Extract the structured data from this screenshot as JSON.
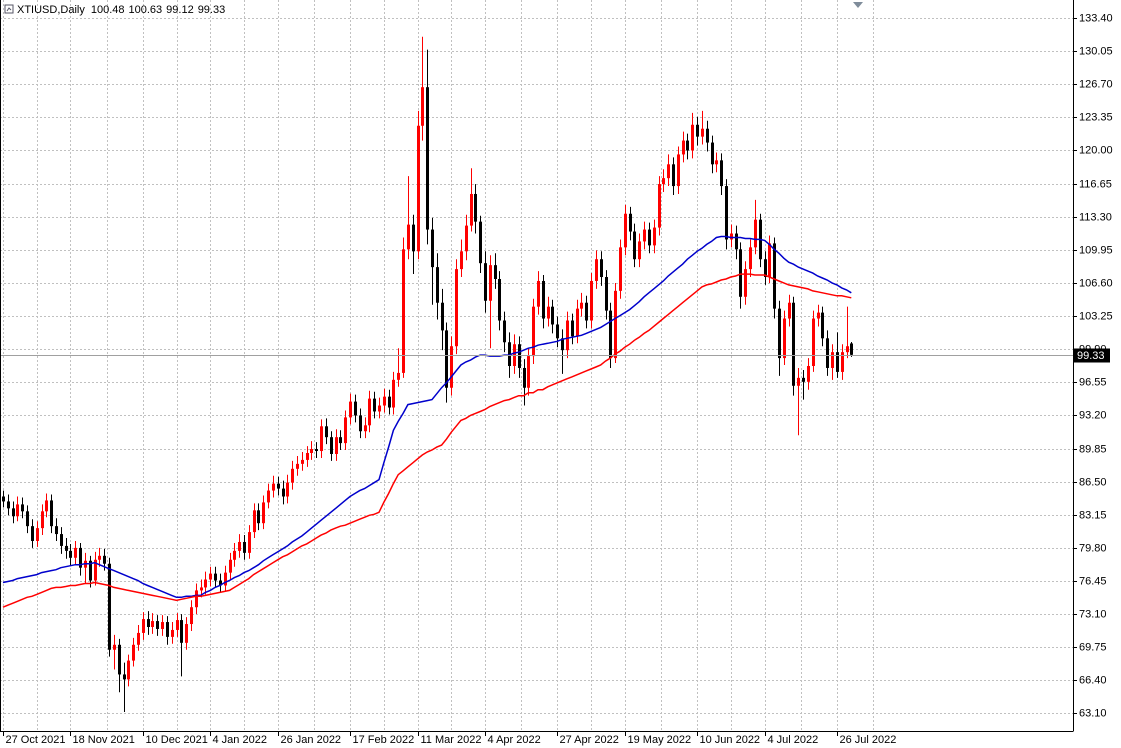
{
  "chart_data": {
    "type": "candlestick",
    "title": "XTIUSD,Daily",
    "categories": [
      "27 Oct 2021",
      null,
      null,
      null,
      null,
      null,
      null,
      null,
      null,
      null,
      null,
      null,
      null,
      null,
      "18 Nov 2021",
      null,
      null,
      null,
      null,
      null,
      null,
      null,
      null,
      null,
      null,
      null,
      null,
      null,
      null,
      "10 Dec 2021",
      null,
      null,
      null,
      null,
      null,
      null,
      null,
      null,
      null,
      null,
      null,
      null,
      null,
      "4 Jan 2022",
      null,
      null,
      null,
      null,
      null,
      null,
      null,
      null,
      null,
      null,
      null,
      null,
      null,
      "26 Jan 2022",
      null,
      null,
      null,
      null,
      null,
      null,
      null,
      null,
      null,
      null,
      null,
      null,
      null,
      null,
      "17 Feb 2022",
      null,
      null,
      null,
      null,
      null,
      null,
      null,
      null,
      null,
      null,
      null,
      null,
      null,
      "11 Mar 2022",
      null,
      null,
      null,
      null,
      null,
      null,
      null,
      null,
      null,
      null,
      null,
      null,
      null,
      "4 Apr 2022",
      null,
      null,
      null,
      null,
      null,
      null,
      null,
      null,
      null,
      null,
      null,
      null,
      null,
      null,
      "27 Apr 2022",
      null,
      null,
      null,
      null,
      null,
      null,
      null,
      null,
      null,
      null,
      null,
      null,
      null,
      "19 May 2022",
      null,
      null,
      null,
      null,
      null,
      null,
      null,
      null,
      null,
      null,
      null,
      null,
      null,
      null,
      "10 Jun 2022",
      null,
      null,
      null,
      null,
      null,
      null,
      null,
      null,
      null,
      null,
      null,
      null,
      null,
      "4 Jul 2022",
      null,
      null,
      null,
      null,
      null,
      null,
      null,
      null,
      null,
      null,
      null,
      null,
      null,
      null,
      "26 Jul 2022",
      null,
      null,
      null
    ],
    "open": [
      85.0,
      84.5,
      83.8,
      83.0,
      84.2,
      83.5,
      82.0,
      80.5,
      81.8,
      83.5,
      84.6,
      82.0,
      81.2,
      80.0,
      79.5,
      78.8,
      79.8,
      77.8,
      78.5,
      76.5,
      78.6,
      79.0,
      78.2,
      69.5,
      70.0,
      67.0,
      66.5,
      68.4,
      70.0,
      71.2,
      72.6,
      71.8,
      72.4,
      71.6,
      72.3,
      70.8,
      71.5,
      72.5,
      70.2,
      72.1,
      73.8,
      75.5,
      75.8,
      76.6,
      77.2,
      76.5,
      76.0,
      77.3,
      78.6,
      79.5,
      80.4,
      79.3,
      81.4,
      83.6,
      82.3,
      84.4,
      85.6,
      86.3,
      85.8,
      85.0,
      86.4,
      87.8,
      88.3,
      88.7,
      89.4,
      89.8,
      89.6,
      92.1,
      91.0,
      89.3,
      91.0,
      90.4,
      93.0,
      94.6,
      93.2,
      91.6,
      92.2,
      94.9,
      93.6,
      94.2,
      95.1,
      94.0,
      96.8,
      97.5,
      110.0,
      112.5,
      109.8,
      122.5,
      126.4,
      112.0,
      108.2,
      104.6,
      101.8,
      96.0,
      100.2,
      108.0,
      109.8,
      112.4,
      115.6,
      112.8,
      108.6,
      104.8,
      108.4,
      107.0,
      102.8,
      100.6,
      98.2,
      100.4,
      98.0,
      96.0,
      99.2,
      104.2,
      106.8,
      103.0,
      104.2,
      102.4,
      101.0,
      99.8,
      102.8,
      101.2,
      104.0,
      104.6,
      102.8,
      106.8,
      109.0,
      107.2,
      103.8,
      99.0,
      105.8,
      110.2,
      113.6,
      111.8,
      109.0,
      110.8,
      112.0,
      110.4,
      112.2,
      116.6,
      117.2,
      118.6,
      116.4,
      119.6,
      121.0,
      120.0,
      122.6,
      121.4,
      122.2,
      120.8,
      118.6,
      119.0,
      116.4,
      111.0,
      111.6,
      110.0,
      105.2,
      108.0,
      110.2,
      113.0,
      109.0,
      107.2,
      110.6,
      104.0,
      99.0,
      103.0,
      104.6,
      96.2,
      97.0,
      96.6,
      98.2,
      103.0,
      103.6,
      101.0,
      98.0,
      99.6,
      97.6,
      99.6,
      100.48
    ],
    "high": [
      85.6,
      85.2,
      84.5,
      85.0,
      84.9,
      84.1,
      82.7,
      82.5,
      84.2,
      85.3,
      85.2,
      82.8,
      81.9,
      80.8,
      80.2,
      80.5,
      80.3,
      79.3,
      79.0,
      79.4,
      79.8,
      79.7,
      78.8,
      71.0,
      70.6,
      68.2,
      69.0,
      70.7,
      72.0,
      73.3,
      73.4,
      73.2,
      73.0,
      73.0,
      72.9,
      72.3,
      73.2,
      73.1,
      72.8,
      74.5,
      76.2,
      76.6,
      77.4,
      77.9,
      77.9,
      77.2,
      78.0,
      79.3,
      80.3,
      81.2,
      81.1,
      82.1,
      84.3,
      84.3,
      85.1,
      86.3,
      87.1,
      87.0,
      86.6,
      87.2,
      88.6,
      89.1,
      89.5,
      90.1,
      90.6,
      90.5,
      92.8,
      92.9,
      91.6,
      91.8,
      91.7,
      93.7,
      95.4,
      95.3,
      93.9,
      93.0,
      95.7,
      95.6,
      95.0,
      95.9,
      95.8,
      97.6,
      100.0,
      111.2,
      117.4,
      113.5,
      124.0,
      131.5,
      130.2,
      113.2,
      109.6,
      106.0,
      102.6,
      101.2,
      109.0,
      111.0,
      113.5,
      118.2,
      116.6,
      113.4,
      109.8,
      109.4,
      109.6,
      107.8,
      103.7,
      101.6,
      101.4,
      101.2,
      98.9,
      100.0,
      105.0,
      107.8,
      107.4,
      105.2,
      104.9,
      103.2,
      101.9,
      103.7,
      103.5,
      104.9,
      105.6,
      105.3,
      107.6,
      109.9,
      109.8,
      107.9,
      104.6,
      106.6,
      111.0,
      114.5,
      114.3,
      112.6,
      111.6,
      112.8,
      112.7,
      113.0,
      117.4,
      118.1,
      119.6,
      119.3,
      120.4,
      121.9,
      121.7,
      123.8,
      123.4,
      124.0,
      123.0,
      121.5,
      119.8,
      119.7,
      117.1,
      112.5,
      112.4,
      110.7,
      108.8,
      111.0,
      115.0,
      113.6,
      109.8,
      111.4,
      111.2,
      104.8,
      103.8,
      105.4,
      105.2,
      98.0,
      97.8,
      99.0,
      103.8,
      104.4,
      104.2,
      101.8,
      100.4,
      101.6,
      100.4,
      104.2,
      100.63
    ],
    "low": [
      83.9,
      83.1,
      82.3,
      82.5,
      82.8,
      81.3,
      79.8,
      79.9,
      81.1,
      82.9,
      81.3,
      80.5,
      79.2,
      78.7,
      78.0,
      78.1,
      77.0,
      76.2,
      75.8,
      76.0,
      77.9,
      77.5,
      68.8,
      67.5,
      65.2,
      63.2,
      65.8,
      67.8,
      69.4,
      70.5,
      71.0,
      71.1,
      70.9,
      70.9,
      70.0,
      70.1,
      70.8,
      66.8,
      69.5,
      71.4,
      73.1,
      74.8,
      75.1,
      75.9,
      75.8,
      75.3,
      75.4,
      76.6,
      77.9,
      78.8,
      78.6,
      78.7,
      80.8,
      81.6,
      81.7,
      83.8,
      84.9,
      85.1,
      84.2,
      84.3,
      85.7,
      87.1,
      87.6,
      88.0,
      88.7,
      88.9,
      88.9,
      90.3,
      88.6,
      88.6,
      89.7,
      89.7,
      92.3,
      92.5,
      90.9,
      90.9,
      91.5,
      92.9,
      92.9,
      93.5,
      93.3,
      93.3,
      96.1,
      97.0,
      109.0,
      107.5,
      109.0,
      121.0,
      110.5,
      104.4,
      102.9,
      99.8,
      94.5,
      95.2,
      99.4,
      107.2,
      108.9,
      111.8,
      111.6,
      107.6,
      103.6,
      100.0,
      106.0,
      101.8,
      99.6,
      97.0,
      97.4,
      97.0,
      94.2,
      95.2,
      98.4,
      103.4,
      102.0,
      102.2,
      101.5,
      100.1,
      97.4,
      99.0,
      100.4,
      100.5,
      103.2,
      102.0,
      102.0,
      106.0,
      106.3,
      102.9,
      98.0,
      98.5,
      105.0,
      109.4,
      110.9,
      108.2,
      108.2,
      110.0,
      109.6,
      109.6,
      111.4,
      115.8,
      116.4,
      115.5,
      115.6,
      118.8,
      119.1,
      119.2,
      120.5,
      120.6,
      119.9,
      117.7,
      117.8,
      115.5,
      110.0,
      110.2,
      109.0,
      104.0,
      104.4,
      107.2,
      109.5,
      108.2,
      106.4,
      106.6,
      103.0,
      97.2,
      98.3,
      102.2,
      95.2,
      91.2,
      94.8,
      95.8,
      97.6,
      102.2,
      100.2,
      97.2,
      96.8,
      97.0,
      96.8,
      99.0,
      99.12
    ],
    "close": [
      84.5,
      83.8,
      83.0,
      84.2,
      83.5,
      82.0,
      80.5,
      81.8,
      83.5,
      84.6,
      82.0,
      81.2,
      80.0,
      79.5,
      78.8,
      79.8,
      77.8,
      78.5,
      76.5,
      78.6,
      79.0,
      78.2,
      69.5,
      70.0,
      67.0,
      66.5,
      68.4,
      70.0,
      71.2,
      72.6,
      71.8,
      72.4,
      71.6,
      72.3,
      70.8,
      71.5,
      72.5,
      70.2,
      72.1,
      73.8,
      75.5,
      75.8,
      76.6,
      77.2,
      76.5,
      76.0,
      77.3,
      78.6,
      79.5,
      80.4,
      79.3,
      81.4,
      83.6,
      82.3,
      84.4,
      85.6,
      86.3,
      85.8,
      85.0,
      86.4,
      87.8,
      88.3,
      88.7,
      89.4,
      89.8,
      89.6,
      92.1,
      91.0,
      89.3,
      91.0,
      90.4,
      93.0,
      94.6,
      93.2,
      91.6,
      92.2,
      94.9,
      93.6,
      94.2,
      95.1,
      94.0,
      96.8,
      97.5,
      110.0,
      112.5,
      109.8,
      122.5,
      126.4,
      112.0,
      108.2,
      104.6,
      101.8,
      96.0,
      100.2,
      108.0,
      109.8,
      112.4,
      115.6,
      112.8,
      108.6,
      104.8,
      108.4,
      107.0,
      102.8,
      100.6,
      98.2,
      100.4,
      98.0,
      96.0,
      99.2,
      104.2,
      106.8,
      103.0,
      104.2,
      102.4,
      101.0,
      99.8,
      102.8,
      101.2,
      104.0,
      104.6,
      102.8,
      106.8,
      109.0,
      107.2,
      103.8,
      99.0,
      105.8,
      110.2,
      113.6,
      111.8,
      109.0,
      110.8,
      112.0,
      110.4,
      112.2,
      116.6,
      117.2,
      118.6,
      116.4,
      119.6,
      121.0,
      120.0,
      122.6,
      121.4,
      122.2,
      120.8,
      118.6,
      119.0,
      116.4,
      111.0,
      111.6,
      110.0,
      105.2,
      108.0,
      110.2,
      113.0,
      109.0,
      107.2,
      110.6,
      104.0,
      99.0,
      103.0,
      104.6,
      96.2,
      97.0,
      96.6,
      98.2,
      103.0,
      103.6,
      101.0,
      98.0,
      99.6,
      97.6,
      99.6,
      100.2,
      99.33
    ],
    "up_color": "#ff0000",
    "down_color": "#000000",
    "lines": [
      {
        "color": "#0000cc",
        "values": [
          76.3,
          76.4,
          76.5,
          76.7,
          76.8,
          76.9,
          77.0,
          77.1,
          77.3,
          77.4,
          77.5,
          77.6,
          77.8,
          77.9,
          78.0,
          78.1,
          78.1,
          78.2,
          78.2,
          78.3,
          78.1,
          77.9,
          77.7,
          77.5,
          77.3,
          77.1,
          76.9,
          76.7,
          76.5,
          76.2,
          76.0,
          75.8,
          75.6,
          75.4,
          75.2,
          75.0,
          74.8,
          74.8,
          74.9,
          74.9,
          75.0,
          75.0,
          75.3,
          75.5,
          75.8,
          76.0,
          76.3,
          76.5,
          76.8,
          77.0,
          77.3,
          77.5,
          77.8,
          78.1,
          78.5,
          78.8,
          79.1,
          79.4,
          79.7,
          80.0,
          80.4,
          80.7,
          81.0,
          81.4,
          81.8,
          82.2,
          82.6,
          83.0,
          83.4,
          83.8,
          84.2,
          84.6,
          85.0,
          85.3,
          85.6,
          85.8,
          86.1,
          86.4,
          86.7,
          88.4,
          90.0,
          91.7,
          92.6,
          93.4,
          94.3,
          94.4,
          94.5,
          94.6,
          94.7,
          94.8,
          95.4,
          96.0,
          96.5,
          97.1,
          97.7,
          98.3,
          98.6,
          98.8,
          99.1,
          99.3,
          99.3,
          99.2,
          99.2,
          99.2,
          99.3,
          99.3,
          99.5,
          99.6,
          99.8,
          100.0,
          100.1,
          100.3,
          100.4,
          100.5,
          100.6,
          100.7,
          100.9,
          101.0,
          101.1,
          101.2,
          101.3,
          101.5,
          101.7,
          101.9,
          102.1,
          102.4,
          102.7,
          103.0,
          103.3,
          103.6,
          103.9,
          104.3,
          104.7,
          105.2,
          105.6,
          106.0,
          106.4,
          106.8,
          107.3,
          107.7,
          108.1,
          108.5,
          109.0,
          109.4,
          109.8,
          110.1,
          110.5,
          110.8,
          111.2,
          111.3,
          111.3,
          111.2,
          111.2,
          111.2,
          111.1,
          111.1,
          111.0,
          111.0,
          110.9,
          110.5,
          110.0,
          109.6,
          109.1,
          108.7,
          108.5,
          108.2,
          108.0,
          107.8,
          107.6,
          107.3,
          107.1,
          106.9,
          106.6,
          106.4,
          106.1,
          105.9,
          105.6
        ]
      },
      {
        "color": "#ff0000",
        "values": [
          73.8,
          74.0,
          74.2,
          74.4,
          74.6,
          74.8,
          74.9,
          75.1,
          75.3,
          75.5,
          75.7,
          75.8,
          75.8,
          75.9,
          76.0,
          76.0,
          76.1,
          76.2,
          76.2,
          76.3,
          76.2,
          76.1,
          76.0,
          75.8,
          75.7,
          75.6,
          75.5,
          75.4,
          75.3,
          75.2,
          75.1,
          75.0,
          74.9,
          74.8,
          74.7,
          74.6,
          74.5,
          74.6,
          74.7,
          74.8,
          74.9,
          74.9,
          75.0,
          75.1,
          75.2,
          75.3,
          75.4,
          75.5,
          75.8,
          76.1,
          76.4,
          76.7,
          77.1,
          77.4,
          77.7,
          78.0,
          78.3,
          78.6,
          78.9,
          79.1,
          79.4,
          79.7,
          80.0,
          80.2,
          80.5,
          80.8,
          81.1,
          81.3,
          81.6,
          81.8,
          82.0,
          82.1,
          82.3,
          82.5,
          82.7,
          82.9,
          83.1,
          83.2,
          83.4,
          84.4,
          85.3,
          86.3,
          87.2,
          87.6,
          88.0,
          88.4,
          88.8,
          89.2,
          89.5,
          89.7,
          90.0,
          90.2,
          90.8,
          91.5,
          92.1,
          92.7,
          92.9,
          93.2,
          93.4,
          93.6,
          93.8,
          94.1,
          94.3,
          94.5,
          94.7,
          94.8,
          95.0,
          95.2,
          95.2,
          95.5,
          95.5,
          95.8,
          95.8,
          96.1,
          96.3,
          96.5,
          96.7,
          96.9,
          97.1,
          97.3,
          97.5,
          97.7,
          97.9,
          98.1,
          98.3,
          98.7,
          99.0,
          99.4,
          99.7,
          100.1,
          100.4,
          100.8,
          101.1,
          101.5,
          101.8,
          102.2,
          102.6,
          103.0,
          103.4,
          103.8,
          104.2,
          104.6,
          105.0,
          105.4,
          105.8,
          106.2,
          106.4,
          106.5,
          106.7,
          106.9,
          107.0,
          107.2,
          107.3,
          107.5,
          107.5,
          107.5,
          107.4,
          107.4,
          107.4,
          107.2,
          107.0,
          106.8,
          106.6,
          106.4,
          106.3,
          106.2,
          106.1,
          106.0,
          105.8,
          105.7,
          105.6,
          105.5,
          105.4,
          105.3,
          105.3,
          105.2,
          105.1
        ]
      }
    ],
    "ylim": [
      61.28,
      135.22
    ],
    "yticks": [
      {
        "value": 133.4,
        "label": "133.40"
      },
      130.05,
      {
        "value": 126.7,
        "label": "126.70"
      },
      123.35,
      {
        "value": 120,
        "label": "120.00"
      },
      116.65,
      {
        "value": 113.3,
        "label": "113.30"
      },
      109.95,
      {
        "value": 106.6,
        "label": "106.60"
      },
      103.25,
      {
        "value": 99.9,
        "label": "99.90"
      },
      96.55,
      {
        "value": 93.2,
        "label": "93.20"
      },
      89.85,
      {
        "value": 86.5,
        "label": "86.50"
      },
      83.15,
      {
        "value": 79.8,
        "label": "79.80"
      },
      76.45,
      {
        "value": 73.1,
        "label": "73.10"
      },
      69.75,
      {
        "value": 66.4,
        "label": "66.40"
      },
      {
        "value": 63.1,
        "label": "63.10"
      }
    ],
    "grid": true
  }
}
